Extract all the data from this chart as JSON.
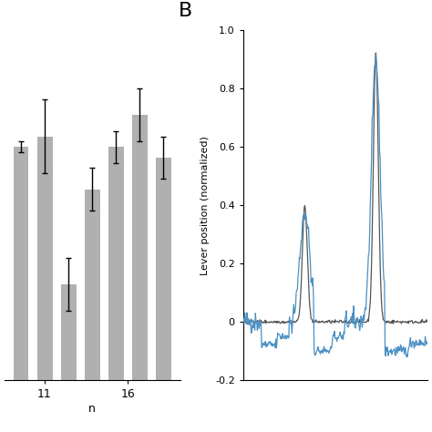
{
  "panel_b_label": "B",
  "bar_values": [
    0.97,
    0.98,
    0.84,
    0.93,
    0.97,
    1.0,
    0.96
  ],
  "bar_errors": [
    0.005,
    0.035,
    0.025,
    0.02,
    0.015,
    0.025,
    0.02
  ],
  "bar_color": "#b0b0b0",
  "bar_x_labels": [
    "11",
    "16"
  ],
  "bar_xlabel": "n",
  "bar_xlim": [
    0,
    8
  ],
  "bar_ylim": [
    0.75,
    1.08
  ],
  "line_ylabel": "Lever position (normalized)",
  "line_ylim": [
    -0.2,
    1.0
  ],
  "line_yticks": [
    -0.2,
    0,
    0.2,
    0.4,
    0.6,
    0.8,
    1.0
  ],
  "blue_color": "#4a90c4",
  "gray_color": "#555555",
  "background_color": "#ffffff"
}
